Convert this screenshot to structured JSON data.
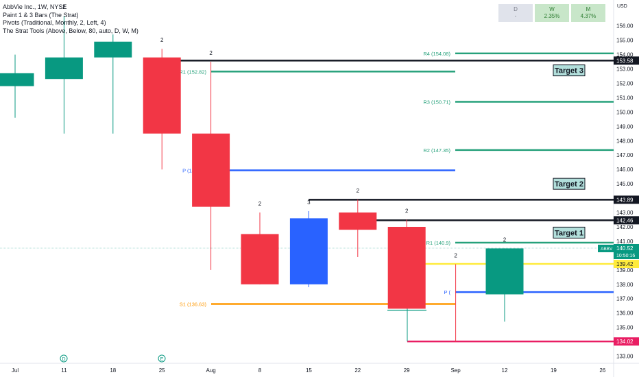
{
  "legend": {
    "title": "AbbVie Inc., 1W, NYSE",
    "line1": "Paint 1 & 3 Bars (The Strat)",
    "line2": "Pivots (Traditional, Monthly, 2, Left, 4)",
    "line3": "The Strat Tools (Above, Below, 80, auto, D, W, M)"
  },
  "period_table": [
    {
      "label": "D",
      "value": "-"
    },
    {
      "label": "W",
      "value": "2.35%"
    },
    {
      "label": "M",
      "value": "4.37%"
    }
  ],
  "currency": "USD",
  "price_axis": {
    "min": 132.5,
    "max": 157.8,
    "ticks": [
      "133.00",
      "134.00",
      "135.00",
      "136.00",
      "137.00",
      "138.00",
      "139.00",
      "140.00",
      "141.00",
      "142.00",
      "143.00",
      "144.00",
      "145.00",
      "146.00",
      "147.00",
      "148.00",
      "149.00",
      "150.00",
      "151.00",
      "152.00",
      "153.00",
      "154.00",
      "155.00",
      "156.00"
    ]
  },
  "time_axis": [
    "Jul",
    "11",
    "18",
    "25",
    "Aug",
    "8",
    "15",
    "22",
    "29",
    "Sep",
    "12",
    "19",
    "26"
  ],
  "colors": {
    "up": "#089981",
    "down": "#f23645",
    "inside": "#2962ff",
    "pivot_green": "#26a17b",
    "pivot_blue": "#2962ff",
    "pivot_orange": "#ff9800",
    "yellow": "#ffeb3b",
    "pink": "#e91e63",
    "black": "#131722"
  },
  "candles": [
    {
      "date": "Jun 27",
      "open": 151.8,
      "high": 154.0,
      "low": 149.6,
      "close": 152.7,
      "dir": "up",
      "label": ""
    },
    {
      "date": "Jul 4",
      "open": 152.3,
      "high": 156.7,
      "low": 148.5,
      "close": 153.8,
      "dir": "up",
      "label": "2"
    },
    {
      "date": "Jul 11",
      "open": 154.9,
      "high": 155.4,
      "low": 148.5,
      "close": 153.8,
      "dir": "up",
      "label": ""
    },
    {
      "date": "Jul 18",
      "open": 153.8,
      "high": 154.4,
      "low": 146.0,
      "close": 148.5,
      "dir": "down",
      "label": "2"
    },
    {
      "date": "Jul 25",
      "open": 148.5,
      "high": 153.5,
      "low": 139.0,
      "close": 143.4,
      "dir": "down",
      "label": "2"
    },
    {
      "date": "Aug 1",
      "open": 141.5,
      "high": 143.0,
      "low": 138.0,
      "close": 138.0,
      "dir": "down",
      "label": "2"
    },
    {
      "date": "Aug 8",
      "open": 138.0,
      "high": 143.1,
      "low": 137.8,
      "close": 142.6,
      "dir": "inside",
      "label": "3"
    },
    {
      "date": "Aug 15",
      "open": 143.0,
      "high": 143.9,
      "low": 139.9,
      "close": 141.8,
      "dir": "down",
      "label": "2"
    },
    {
      "date": "Aug 22",
      "open": 142.0,
      "high": 142.5,
      "low": 136.3,
      "close": 136.3,
      "dir": "down",
      "label": "2"
    },
    {
      "date": "Aug 29",
      "open": 136.2,
      "high": 139.4,
      "low": 134.0,
      "close": 136.2,
      "dir": "down",
      "label": "2"
    },
    {
      "date": "Sep 5",
      "open": 137.3,
      "high": 140.5,
      "low": 135.4,
      "close": 140.5,
      "dir": "up",
      "label": "2"
    }
  ],
  "pivot_levels": [
    {
      "label": "R4 (154.08)",
      "price": 154.08,
      "color": "pivot_green",
      "segment": "right"
    },
    {
      "label": "R1 (152.82)",
      "price": 152.82,
      "color": "pivot_green",
      "segment": "left"
    },
    {
      "label": "R3 (150.71)",
      "price": 150.71,
      "color": "pivot_green",
      "segment": "right"
    },
    {
      "label": "R2 (147.35)",
      "price": 147.35,
      "color": "pivot_green",
      "segment": "right"
    },
    {
      "label": "P (145.94)",
      "price": 145.94,
      "color": "pivot_blue",
      "segment": "left"
    },
    {
      "label": "R1 (140.9)",
      "price": 140.9,
      "color": "pivot_green",
      "segment": "right"
    },
    {
      "label": "P (",
      "price": 137.46,
      "color": "pivot_blue",
      "segment": "right"
    },
    {
      "label": "S1 (136.63)",
      "price": 136.63,
      "color": "pivot_orange",
      "segment": "left"
    }
  ],
  "strat_levels": [
    {
      "price": 153.58,
      "label": "153.58",
      "color": "black"
    },
    {
      "price": 143.89,
      "label": "143.89",
      "color": "black"
    },
    {
      "price": 142.46,
      "label": "142.46",
      "color": "black"
    },
    {
      "price": 139.42,
      "label": "139.42",
      "color": "yellow"
    },
    {
      "price": 134.02,
      "label": "134.02",
      "color": "pink"
    }
  ],
  "targets": [
    {
      "label": "Target 3",
      "price": 152.9
    },
    {
      "label": "Target 2",
      "price": 145.0
    },
    {
      "label": "Target 1",
      "price": 141.6
    }
  ],
  "current_price": {
    "symbol": "ABBV",
    "price": 140.52,
    "price_label": "140.52",
    "countdown": "10:50:16"
  },
  "event_markers": [
    {
      "label": "D",
      "date": "Jul 11"
    },
    {
      "label": "E",
      "date": "Jul 25"
    }
  ]
}
